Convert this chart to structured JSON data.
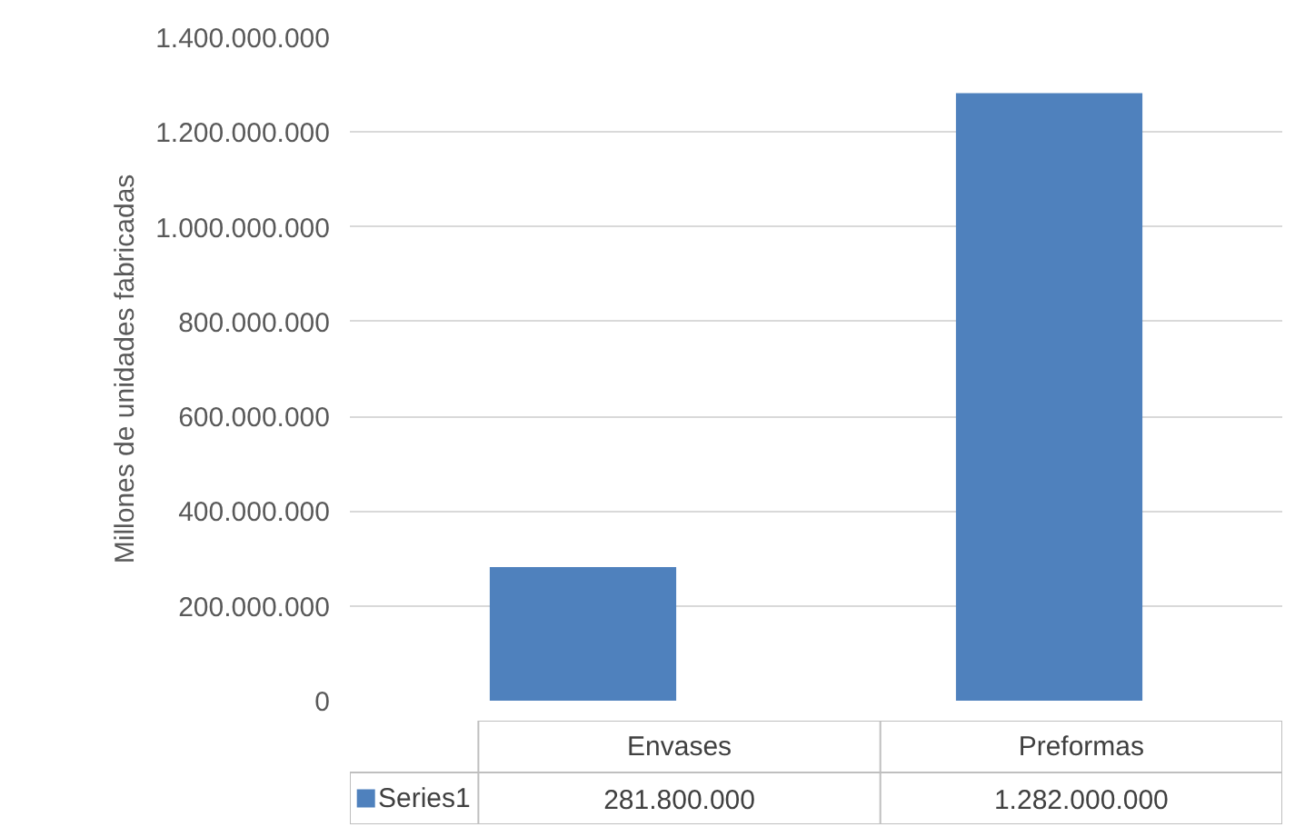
{
  "chart_data": {
    "type": "bar",
    "ylabel": "Millones de unidades fabricadas",
    "categories": [
      "Envases",
      "Preformas"
    ],
    "series": [
      {
        "name": "Series1",
        "color": "#4f81bd",
        "values": [
          281800000,
          1282000000
        ],
        "value_labels": [
          "281.800.000",
          "1.282.000.000"
        ]
      }
    ],
    "ylim": [
      0,
      1400000000
    ],
    "yticks": [
      0,
      {
        "value": 200000000,
        "label": "200.000.000"
      },
      {
        "value": 400000000,
        "label": "400.000.000"
      },
      {
        "value": 600000000,
        "label": "600.000.000"
      },
      {
        "value": 800000000,
        "label": "800.000.000"
      },
      {
        "value": 1000000000,
        "label": "1.000.000.000"
      },
      {
        "value": 1200000000,
        "label": "1.200.000.000"
      },
      {
        "value": 1400000000,
        "label": "1.400.000.000"
      }
    ],
    "grid": "y",
    "legend": "bottom"
  }
}
